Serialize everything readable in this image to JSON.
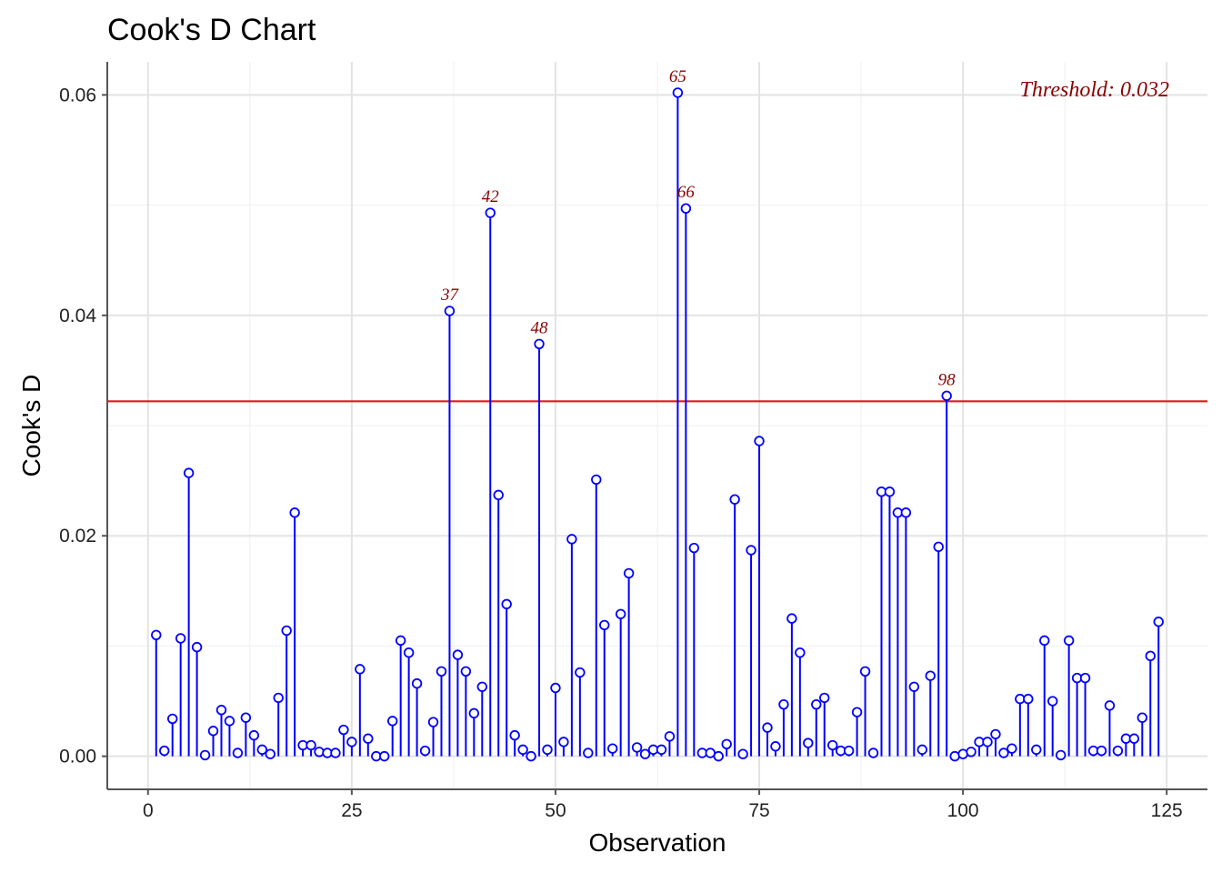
{
  "chart_data": {
    "type": "scatter",
    "style": "lollipop",
    "title": "Cook's D Chart",
    "xlabel": "Observation",
    "ylabel": "Cook's D",
    "xlim": [
      -5,
      130
    ],
    "ylim": [
      -0.003,
      0.063
    ],
    "x_ticks": [
      0,
      25,
      50,
      75,
      100,
      125
    ],
    "y_ticks": [
      0.0,
      0.02,
      0.04,
      0.06
    ],
    "y_tick_labels": [
      "0.00",
      "0.02",
      "0.04",
      "0.06"
    ],
    "grid": true,
    "threshold": 0.0322,
    "threshold_label": "Threshold: 0.032",
    "colors": {
      "stem": "#0000ff",
      "threshold": "#e31a1c",
      "annotation": "#8b0000"
    },
    "highlighted_labels": [
      "37",
      "42",
      "48",
      "65",
      "66",
      "98"
    ],
    "x": [
      1,
      2,
      3,
      4,
      5,
      6,
      7,
      8,
      9,
      10,
      11,
      12,
      13,
      14,
      15,
      16,
      17,
      18,
      19,
      20,
      21,
      22,
      23,
      24,
      25,
      26,
      27,
      28,
      29,
      30,
      31,
      32,
      33,
      34,
      35,
      36,
      37,
      38,
      39,
      40,
      41,
      42,
      43,
      44,
      45,
      46,
      47,
      48,
      49,
      50,
      51,
      52,
      53,
      54,
      55,
      56,
      57,
      58,
      59,
      60,
      61,
      62,
      63,
      64,
      65,
      66,
      67,
      68,
      69,
      70,
      71,
      72,
      73,
      74,
      75,
      76,
      77,
      78,
      79,
      80,
      81,
      82,
      83,
      84,
      85,
      86,
      87,
      88,
      89,
      90,
      91,
      92,
      93,
      94,
      95,
      96,
      97,
      98,
      99,
      100,
      101,
      102,
      103,
      104,
      105,
      106,
      107,
      108,
      109,
      110,
      111,
      112,
      113,
      114,
      115,
      116,
      117,
      118,
      119,
      120,
      121,
      122,
      123,
      124
    ],
    "values": [
      0.011,
      0.0005,
      0.0034,
      0.0107,
      0.0257,
      0.0099,
      0.0001,
      0.0023,
      0.0042,
      0.0032,
      0.0003,
      0.0035,
      0.0019,
      0.0006,
      0.0002,
      0.0053,
      0.0114,
      0.0221,
      0.001,
      0.001,
      0.0004,
      0.0003,
      0.0003,
      0.0024,
      0.0013,
      0.0079,
      0.0016,
      0.0,
      0.0,
      0.0032,
      0.0105,
      0.0094,
      0.0066,
      0.0005,
      0.0031,
      0.0077,
      0.0404,
      0.0092,
      0.0077,
      0.0039,
      0.0063,
      0.0493,
      0.0237,
      0.0138,
      0.0019,
      0.0006,
      0.0,
      0.0374,
      0.0006,
      0.0062,
      0.0013,
      0.0197,
      0.0076,
      0.0003,
      0.0251,
      0.0119,
      0.0007,
      0.0129,
      0.0166,
      0.0008,
      0.0002,
      0.0006,
      0.0006,
      0.0018,
      0.0602,
      0.0497,
      0.0189,
      0.0003,
      0.0003,
      0.0,
      0.0011,
      0.0233,
      0.0002,
      0.0187,
      0.0286,
      0.0026,
      0.0009,
      0.0047,
      0.0125,
      0.0094,
      0.0012,
      0.0047,
      0.0053,
      0.001,
      0.0005,
      0.0005,
      0.004,
      0.0077,
      0.0003,
      0.024,
      0.024,
      0.0221,
      0.0221,
      0.0063,
      0.0006,
      0.0073,
      0.019,
      0.0327,
      0.0,
      0.0002,
      0.0004,
      0.0013,
      0.0013,
      0.002,
      0.0003,
      0.0007,
      0.0052,
      0.0052,
      0.0006,
      0.0105,
      0.005,
      0.0001,
      0.0105,
      0.0071,
      0.0071,
      0.0005,
      0.0005,
      0.0046,
      0.0005,
      0.0016,
      0.0016,
      0.0035,
      0.0091,
      0.0122
    ]
  }
}
